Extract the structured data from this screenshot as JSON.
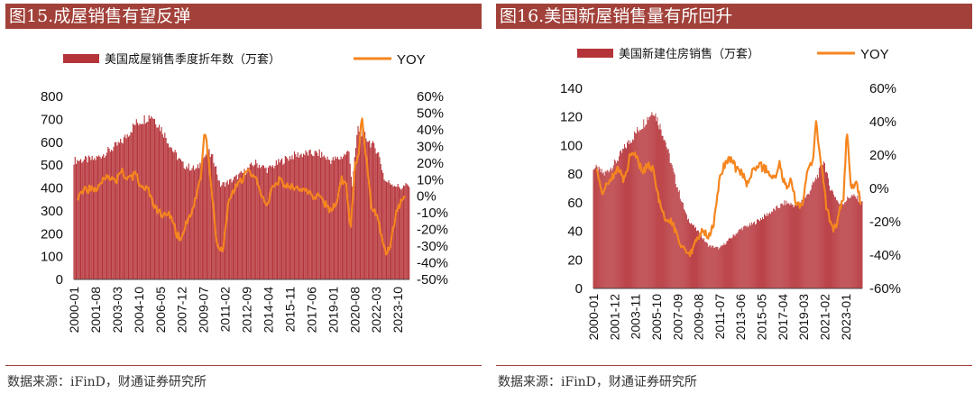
{
  "panels": [
    {
      "title": "图15.成屋销售有望反弹",
      "source": "数据来源：iFinD，财通证券研究所"
    },
    {
      "title": "图16.美国新屋销售量有所回升",
      "source": "数据来源：iFinD，财通证券研究所"
    }
  ],
  "colors": {
    "bar": "#b5343a",
    "line": "#f5851f",
    "title_bg": "#a2413a"
  },
  "chart_data": [
    {
      "type": "bar+line",
      "legend": [
        "美国成屋销售季度折年数（万套）",
        "YOY"
      ],
      "left_axis": {
        "min": 0,
        "max": 800,
        "ticks": [
          "800",
          "700",
          "600",
          "500",
          "400",
          "300",
          "200",
          "100",
          "0"
        ]
      },
      "right_axis": {
        "min": -50,
        "max": 60,
        "ticks": [
          "60%",
          "50%",
          "40%",
          "30%",
          "20%",
          "10%",
          "0%",
          "-10%",
          "-20%",
          "-30%",
          "-40%",
          "-50%"
        ]
      },
      "x_ticks": [
        "2000-01",
        "2001-08",
        "2003-03",
        "2004-10",
        "2006-05",
        "2007-12",
        "2009-07",
        "2011-02",
        "2012-09",
        "2014-04",
        "2015-11",
        "2017-06",
        "2019-01",
        "2020-08",
        "2022-03",
        "2023-10"
      ],
      "bar_anchors": [
        [
          2000.0,
          520
        ],
        [
          2001.5,
          525
        ],
        [
          2002.5,
          560
        ],
        [
          2003.5,
          600
        ],
        [
          2004.5,
          680
        ],
        [
          2005.7,
          720
        ],
        [
          2006.5,
          650
        ],
        [
          2007.3,
          560
        ],
        [
          2008.0,
          500
        ],
        [
          2009.0,
          480
        ],
        [
          2009.8,
          560
        ],
        [
          2010.3,
          520
        ],
        [
          2010.7,
          410
        ],
        [
          2011.5,
          430
        ],
        [
          2012.5,
          470
        ],
        [
          2013.3,
          510
        ],
        [
          2014.2,
          480
        ],
        [
          2015.0,
          510
        ],
        [
          2016.0,
          540
        ],
        [
          2017.0,
          550
        ],
        [
          2018.0,
          550
        ],
        [
          2018.8,
          520
        ],
        [
          2019.5,
          530
        ],
        [
          2020.2,
          560
        ],
        [
          2020.4,
          400
        ],
        [
          2020.8,
          660
        ],
        [
          2021.2,
          640
        ],
        [
          2021.7,
          600
        ],
        [
          2022.3,
          560
        ],
        [
          2022.8,
          430
        ],
        [
          2023.3,
          420
        ],
        [
          2024.0,
          400
        ],
        [
          2024.3,
          410
        ]
      ],
      "yoy_anchors": [
        [
          2000.3,
          0
        ],
        [
          2000.8,
          5
        ],
        [
          2001.5,
          3
        ],
        [
          2002.0,
          10
        ],
        [
          2002.5,
          13
        ],
        [
          2003.0,
          8
        ],
        [
          2003.5,
          15
        ],
        [
          2004.0,
          10
        ],
        [
          2004.5,
          13
        ],
        [
          2005.0,
          5
        ],
        [
          2005.5,
          3
        ],
        [
          2006.0,
          -8
        ],
        [
          2006.5,
          -12
        ],
        [
          2007.0,
          -10
        ],
        [
          2007.5,
          -22
        ],
        [
          2007.8,
          -26
        ],
        [
          2008.3,
          -15
        ],
        [
          2008.9,
          -3
        ],
        [
          2009.3,
          10
        ],
        [
          2009.6,
          40
        ],
        [
          2009.9,
          20
        ],
        [
          2010.2,
          -5
        ],
        [
          2010.5,
          -30
        ],
        [
          2010.7,
          -35
        ],
        [
          2011.0,
          -28
        ],
        [
          2011.3,
          -5
        ],
        [
          2011.8,
          5
        ],
        [
          2012.3,
          10
        ],
        [
          2012.8,
          15
        ],
        [
          2013.3,
          12
        ],
        [
          2013.8,
          -2
        ],
        [
          2014.2,
          -5
        ],
        [
          2014.7,
          8
        ],
        [
          2015.2,
          10
        ],
        [
          2015.7,
          5
        ],
        [
          2016.2,
          6
        ],
        [
          2016.7,
          3
        ],
        [
          2017.2,
          2
        ],
        [
          2017.7,
          0
        ],
        [
          2018.2,
          -2
        ],
        [
          2018.7,
          -8
        ],
        [
          2019.2,
          -5
        ],
        [
          2019.6,
          10
        ],
        [
          2020.0,
          5
        ],
        [
          2020.3,
          -20
        ],
        [
          2020.6,
          20
        ],
        [
          2020.9,
          25
        ],
        [
          2021.1,
          50
        ],
        [
          2021.4,
          25
        ],
        [
          2021.8,
          -5
        ],
        [
          2022.2,
          -10
        ],
        [
          2022.6,
          -25
        ],
        [
          2022.9,
          -35
        ],
        [
          2023.2,
          -28
        ],
        [
          2023.6,
          -10
        ],
        [
          2024.0,
          -3
        ],
        [
          2024.3,
          0
        ]
      ]
    },
    {
      "type": "bar+line",
      "legend": [
        "美国新建住房销售（万套）",
        "YOY"
      ],
      "left_axis": {
        "min": 0,
        "max": 140,
        "ticks": [
          "140",
          "120",
          "100",
          "80",
          "60",
          "40",
          "20",
          "0"
        ]
      },
      "right_axis": {
        "min": -60,
        "max": 60,
        "ticks": [
          "60%",
          "40%",
          "20%",
          "0%",
          "-20%",
          "-40%",
          "-60%"
        ]
      },
      "x_ticks": [
        "2000-01",
        "2001-12",
        "2003-11",
        "2005-10",
        "2007-09",
        "2009-08",
        "2011-07",
        "2013-06",
        "2015-05",
        "2017-04",
        "2019-03",
        "2021-02",
        "2023-01"
      ],
      "bar_anchors": [
        [
          2000.0,
          85
        ],
        [
          2001.0,
          80
        ],
        [
          2002.0,
          88
        ],
        [
          2003.0,
          100
        ],
        [
          2004.0,
          110
        ],
        [
          2005.5,
          125
        ],
        [
          2006.5,
          105
        ],
        [
          2007.5,
          75
        ],
        [
          2008.5,
          50
        ],
        [
          2009.5,
          40
        ],
        [
          2010.5,
          30
        ],
        [
          2011.5,
          28
        ],
        [
          2012.5,
          35
        ],
        [
          2013.5,
          42
        ],
        [
          2014.5,
          45
        ],
        [
          2015.5,
          50
        ],
        [
          2016.5,
          55
        ],
        [
          2017.5,
          60
        ],
        [
          2018.5,
          58
        ],
        [
          2019.5,
          65
        ],
        [
          2020.5,
          80
        ],
        [
          2021.0,
          90
        ],
        [
          2021.5,
          72
        ],
        [
          2022.5,
          58
        ],
        [
          2023.5,
          65
        ],
        [
          2024.4,
          62
        ]
      ],
      "yoy_anchors": [
        [
          2000.3,
          10
        ],
        [
          2000.8,
          -3
        ],
        [
          2001.5,
          5
        ],
        [
          2002.2,
          12
        ],
        [
          2002.8,
          5
        ],
        [
          2003.3,
          18
        ],
        [
          2003.8,
          20
        ],
        [
          2004.5,
          10
        ],
        [
          2005.0,
          15
        ],
        [
          2005.5,
          10
        ],
        [
          2006.0,
          -8
        ],
        [
          2006.5,
          -18
        ],
        [
          2007.0,
          -20
        ],
        [
          2007.5,
          -25
        ],
        [
          2008.0,
          -35
        ],
        [
          2008.5,
          -40
        ],
        [
          2009.0,
          -38
        ],
        [
          2009.5,
          -30
        ],
        [
          2010.0,
          -25
        ],
        [
          2010.5,
          -30
        ],
        [
          2011.0,
          -20
        ],
        [
          2011.5,
          5
        ],
        [
          2012.0,
          15
        ],
        [
          2012.5,
          18
        ],
        [
          2013.0,
          12
        ],
        [
          2013.5,
          10
        ],
        [
          2014.0,
          2
        ],
        [
          2014.5,
          10
        ],
        [
          2015.0,
          15
        ],
        [
          2015.5,
          12
        ],
        [
          2016.0,
          10
        ],
        [
          2016.5,
          5
        ],
        [
          2017.0,
          15
        ],
        [
          2017.5,
          0
        ],
        [
          2018.0,
          5
        ],
        [
          2018.5,
          -10
        ],
        [
          2019.0,
          -12
        ],
        [
          2019.5,
          10
        ],
        [
          2020.0,
          15
        ],
        [
          2020.3,
          40
        ],
        [
          2020.6,
          20
        ],
        [
          2020.9,
          10
        ],
        [
          2021.2,
          -10
        ],
        [
          2021.6,
          -20
        ],
        [
          2022.0,
          -25
        ],
        [
          2022.4,
          -15
        ],
        [
          2022.8,
          -5
        ],
        [
          2023.1,
          35
        ],
        [
          2023.5,
          0
        ],
        [
          2024.0,
          5
        ],
        [
          2024.4,
          -10
        ]
      ]
    }
  ]
}
